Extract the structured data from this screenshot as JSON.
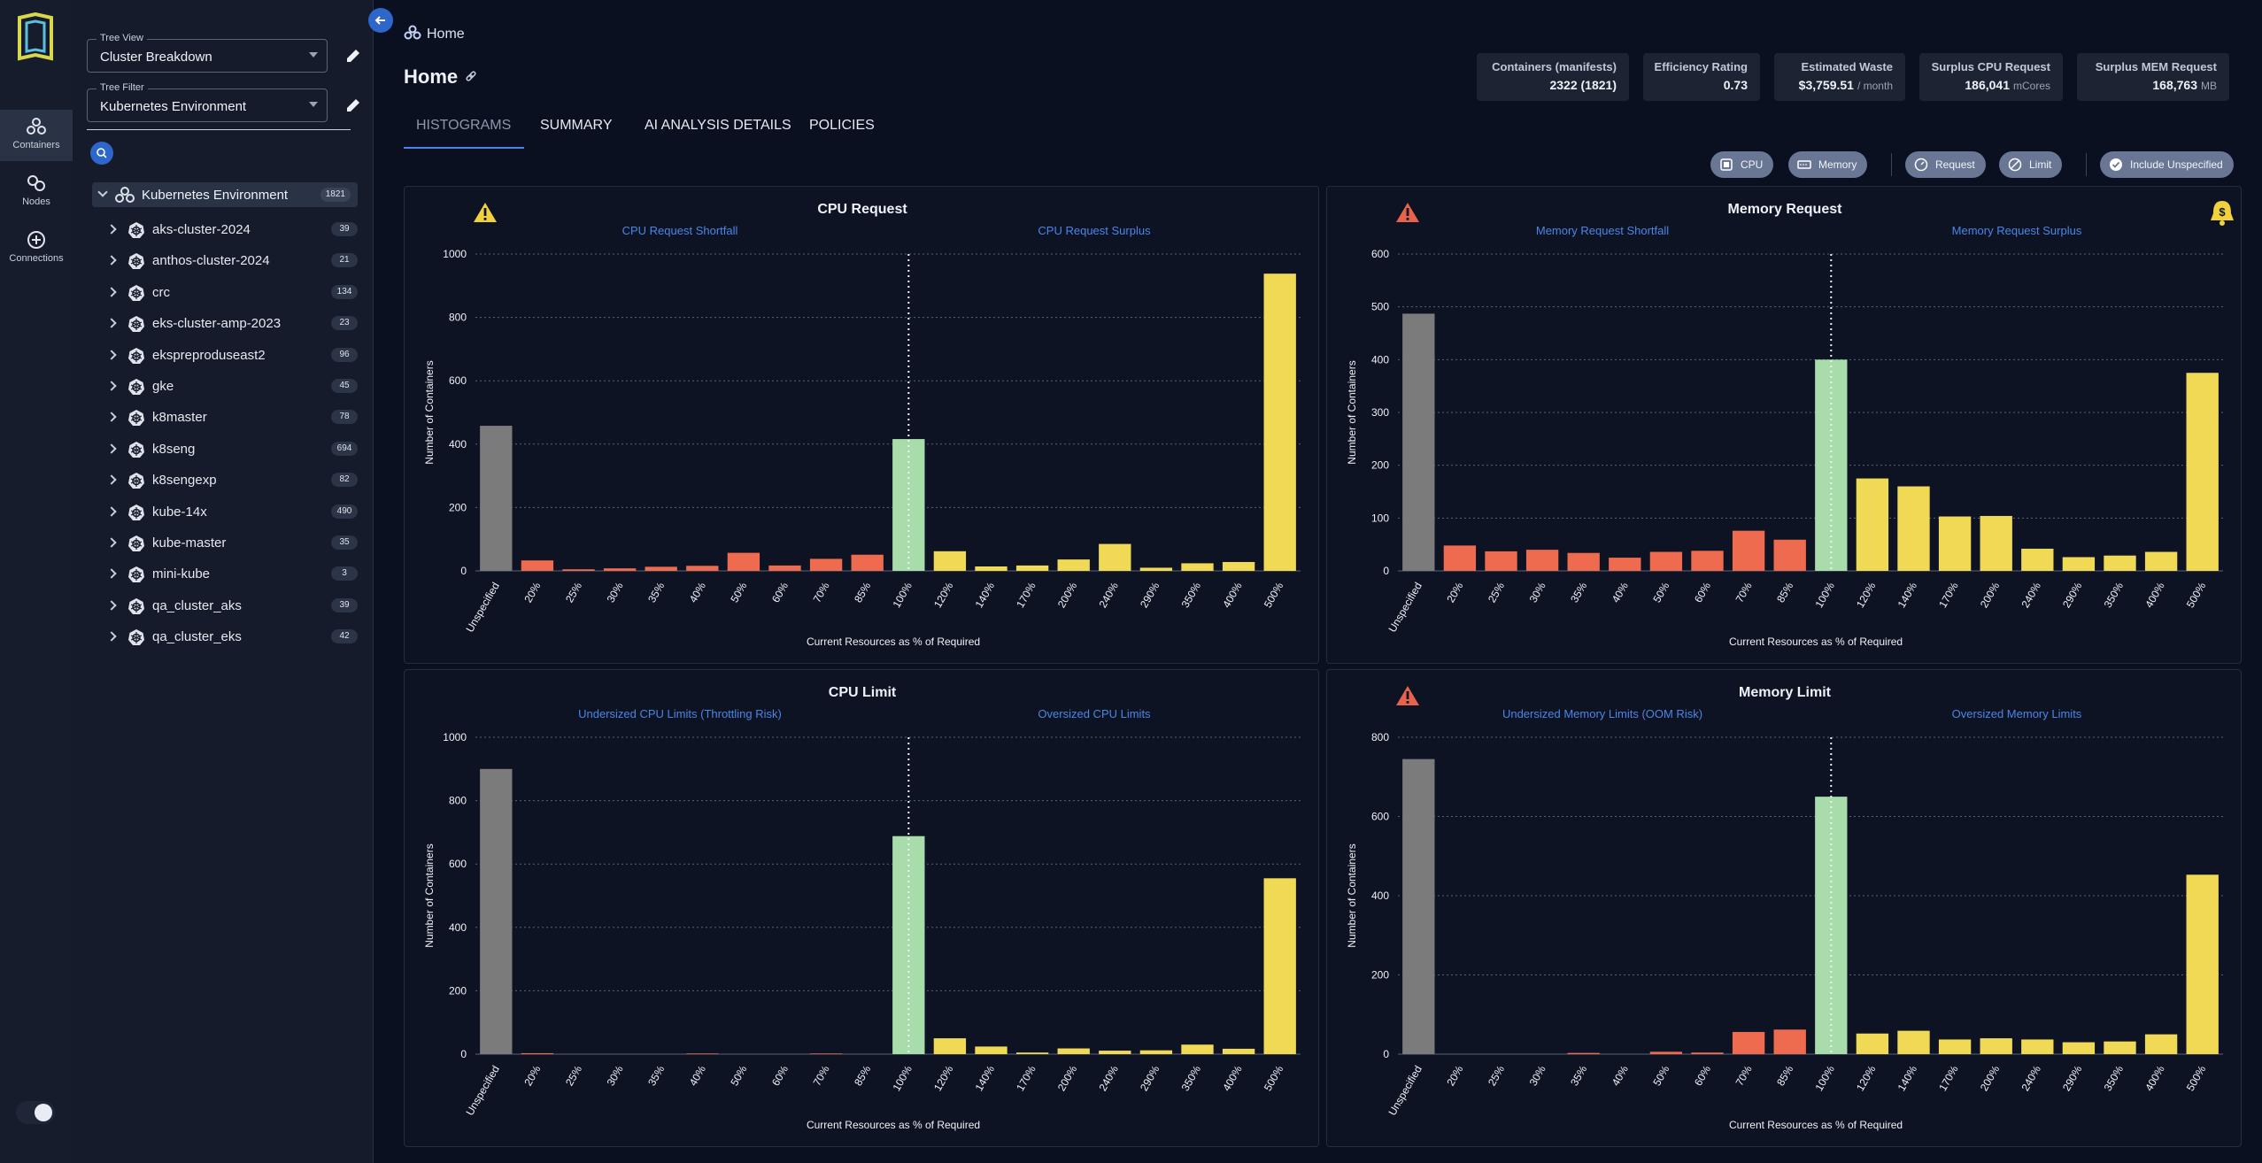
{
  "nav": {
    "items": [
      {
        "label": "Containers",
        "icon": "containers-icon",
        "active": true
      },
      {
        "label": "Nodes",
        "icon": "nodes-icon",
        "active": false
      },
      {
        "label": "Connections",
        "icon": "connections-icon",
        "active": false
      }
    ]
  },
  "tree": {
    "view_label": "Tree View",
    "view_value": "Cluster Breakdown",
    "filter_label": "Tree Filter",
    "filter_value": "Kubernetes Environment",
    "root": {
      "name": "Kubernetes Environment",
      "count": "1821"
    },
    "clusters": [
      {
        "name": "aks-cluster-2024",
        "count": "39"
      },
      {
        "name": "anthos-cluster-2024",
        "count": "21"
      },
      {
        "name": "crc",
        "count": "134"
      },
      {
        "name": "eks-cluster-amp-2023",
        "count": "23"
      },
      {
        "name": "ekspreproduseast2",
        "count": "96"
      },
      {
        "name": "gke",
        "count": "45"
      },
      {
        "name": "k8master",
        "count": "78"
      },
      {
        "name": "k8seng",
        "count": "694"
      },
      {
        "name": "k8sengexp",
        "count": "82"
      },
      {
        "name": "kube-14x",
        "count": "490"
      },
      {
        "name": "kube-master",
        "count": "35"
      },
      {
        "name": "mini-kube",
        "count": "3"
      },
      {
        "name": "qa_cluster_aks",
        "count": "39"
      },
      {
        "name": "qa_cluster_eks",
        "count": "42"
      }
    ]
  },
  "header": {
    "breadcrumb": "Home",
    "title": "Home"
  },
  "stats": [
    {
      "title": "Containers (manifests)",
      "value": "2322 (1821)",
      "unit": ""
    },
    {
      "title": "Efficiency Rating",
      "value": "0.73",
      "unit": ""
    },
    {
      "title": "Estimated Waste",
      "value": "$3,759.51",
      "unit": "/ month"
    },
    {
      "title": "Surplus CPU Request",
      "value": "186,041",
      "unit": "mCores"
    },
    {
      "title": "Surplus MEM Request",
      "value": "168,763",
      "unit": "MB"
    }
  ],
  "tabs": [
    "HISTOGRAMS",
    "SUMMARY",
    "AI ANALYSIS DETAILS",
    "POLICIES"
  ],
  "filters": {
    "cpu": "CPU",
    "memory": "Memory",
    "request": "Request",
    "limit": "Limit",
    "include_unspecified": "Include Unspecified"
  },
  "colors": {
    "unspecified": "#7b7b7b",
    "shortfall": "#ef6b4f",
    "optimal": "#a8ddab",
    "surplus": "#f0da55",
    "warning": "#f1d23c",
    "danger": "#e8634b",
    "accent": "#4a86e8"
  },
  "chart_data": [
    {
      "type": "bar",
      "title": "CPU Request",
      "left_label": "CPU Request Shortfall",
      "right_label": "CPU Request Surplus",
      "xlabel": "Current Resources as % of Required",
      "ylabel": "Number of Containers",
      "ylim": [
        0,
        1000
      ],
      "yticks": [
        0,
        200,
        400,
        600,
        800,
        1000
      ],
      "categories": [
        "Unspecified",
        "20%",
        "25%",
        "30%",
        "35%",
        "40%",
        "50%",
        "60%",
        "70%",
        "85%",
        "100%",
        "120%",
        "140%",
        "170%",
        "200%",
        "240%",
        "290%",
        "350%",
        "400%",
        "500%"
      ],
      "values": [
        458,
        33,
        5,
        8,
        13,
        16,
        57,
        17,
        38,
        51,
        416,
        62,
        14,
        17,
        36,
        85,
        10,
        24,
        28,
        938
      ],
      "warning_icon": "warning",
      "money_icon": false
    },
    {
      "type": "bar",
      "title": "Memory Request",
      "left_label": "Memory Request Shortfall",
      "right_label": "Memory Request Surplus",
      "xlabel": "Current Resources as % of Required",
      "ylabel": "Number of Containers",
      "ylim": [
        0,
        600
      ],
      "yticks": [
        0,
        100,
        200,
        300,
        400,
        500,
        600
      ],
      "categories": [
        "Unspecified",
        "20%",
        "25%",
        "30%",
        "35%",
        "40%",
        "50%",
        "60%",
        "70%",
        "85%",
        "100%",
        "120%",
        "140%",
        "170%",
        "200%",
        "240%",
        "290%",
        "350%",
        "400%",
        "500%"
      ],
      "values": [
        487,
        48,
        37,
        40,
        34,
        25,
        36,
        38,
        76,
        59,
        400,
        175,
        160,
        103,
        104,
        42,
        26,
        29,
        36,
        375
      ],
      "warning_icon": "danger",
      "money_icon": true
    },
    {
      "type": "bar",
      "title": "CPU Limit",
      "left_label": "Undersized CPU Limits (Throttling Risk)",
      "right_label": "Oversized CPU Limits",
      "xlabel": "Current Resources as % of Required",
      "ylabel": "Number of Containers",
      "ylim": [
        0,
        1000
      ],
      "yticks": [
        0,
        200,
        400,
        600,
        800,
        1000
      ],
      "categories": [
        "Unspecified",
        "20%",
        "25%",
        "30%",
        "35%",
        "40%",
        "50%",
        "60%",
        "70%",
        "85%",
        "100%",
        "120%",
        "140%",
        "170%",
        "200%",
        "240%",
        "290%",
        "350%",
        "400%",
        "500%"
      ],
      "values": [
        900,
        3,
        0,
        0,
        0,
        2,
        0,
        0,
        2,
        0,
        688,
        50,
        24,
        5,
        18,
        11,
        12,
        30,
        17,
        555
      ],
      "warning_icon": "none",
      "money_icon": false
    },
    {
      "type": "bar",
      "title": "Memory Limit",
      "left_label": "Undersized Memory Limits (OOM Risk)",
      "right_label": "Oversized Memory Limits",
      "xlabel": "Current Resources as % of Required",
      "ylabel": "Number of Containers",
      "ylim": [
        0,
        800
      ],
      "yticks": [
        0,
        200,
        400,
        600,
        800
      ],
      "categories": [
        "Unspecified",
        "20%",
        "25%",
        "30%",
        "35%",
        "40%",
        "50%",
        "60%",
        "70%",
        "85%",
        "100%",
        "120%",
        "140%",
        "170%",
        "200%",
        "240%",
        "290%",
        "350%",
        "400%",
        "500%"
      ],
      "values": [
        745,
        0,
        0,
        0,
        3,
        0,
        6,
        4,
        56,
        62,
        650,
        52,
        59,
        37,
        40,
        37,
        30,
        32,
        50,
        453
      ],
      "warning_icon": "danger",
      "money_icon": false
    }
  ]
}
